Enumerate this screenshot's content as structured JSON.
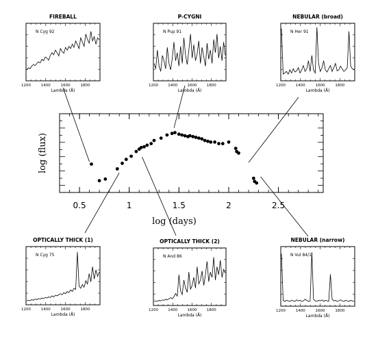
{
  "chart_data": [
    {
      "type": "scatter",
      "title": "",
      "xlabel": "log (days)",
      "ylabel": "log (flux)",
      "xlim": [
        0.3,
        2.95
      ],
      "ylim": [
        0,
        1
      ],
      "xticks": [
        "0.5",
        "1",
        "1.5",
        "2",
        "2.5"
      ],
      "xtick_values": [
        0.5,
        1,
        1.5,
        2,
        2.5
      ],
      "y_tick_labels_shown": false,
      "grid": false,
      "series": [
        {
          "name": "",
          "x": [
            0.62,
            0.7,
            0.76,
            0.88,
            0.93,
            0.97,
            1.02,
            1.07,
            1.1,
            1.12,
            1.15,
            1.18,
            1.22,
            1.25,
            1.32,
            1.38,
            1.43,
            1.46,
            1.5,
            1.53,
            1.56,
            1.59,
            1.61,
            1.64,
            1.67,
            1.7,
            1.73,
            1.76,
            1.79,
            1.82,
            1.86,
            1.9,
            1.94,
            2.0,
            2.07,
            2.08,
            2.1,
            2.25,
            2.26,
            2.28
          ],
          "y": [
            0.36,
            0.15,
            0.17,
            0.3,
            0.37,
            0.42,
            0.46,
            0.52,
            0.55,
            0.57,
            0.58,
            0.6,
            0.62,
            0.66,
            0.69,
            0.73,
            0.75,
            0.76,
            0.74,
            0.73,
            0.72,
            0.71,
            0.72,
            0.71,
            0.7,
            0.69,
            0.68,
            0.66,
            0.65,
            0.64,
            0.64,
            0.62,
            0.62,
            0.64,
            0.56,
            0.52,
            0.5,
            0.18,
            0.14,
            0.12
          ]
        }
      ]
    },
    {
      "type": "line",
      "title": "FIREBALL",
      "series": [
        {
          "name": "N Cyg 92"
        }
      ],
      "xlabel": "Lambda (Å)",
      "xticks": [
        "1200",
        "1400",
        "1600",
        "1800"
      ],
      "xtick_values": [
        1200,
        1400,
        1600,
        1800
      ],
      "xlim": [
        1200,
        1950
      ],
      "ylim": [
        0,
        1
      ],
      "y": [
        0.18,
        0.22,
        0.2,
        0.25,
        0.28,
        0.26,
        0.3,
        0.33,
        0.31,
        0.38,
        0.35,
        0.42,
        0.4,
        0.36,
        0.45,
        0.5,
        0.46,
        0.55,
        0.5,
        0.44,
        0.58,
        0.52,
        0.49,
        0.6,
        0.55,
        0.62,
        0.58,
        0.66,
        0.6,
        0.72,
        0.65,
        0.58,
        0.78,
        0.7,
        0.62,
        0.85,
        0.75,
        0.68,
        0.9,
        0.72,
        0.8,
        0.66,
        0.78,
        0.74
      ]
    },
    {
      "type": "line",
      "title": "P-CYGNI",
      "series": [
        {
          "name": "N Pup 91"
        }
      ],
      "xlabel": "Lambda (Å)",
      "xticks": [
        "1200",
        "1400",
        "1600",
        "1800"
      ],
      "xtick_values": [
        1200,
        1400,
        1600,
        1800
      ],
      "xlim": [
        1200,
        1950
      ],
      "ylim": [
        0,
        1
      ],
      "y": [
        0.3,
        0.2,
        0.55,
        0.25,
        0.15,
        0.45,
        0.35,
        0.2,
        0.6,
        0.3,
        0.18,
        0.4,
        0.7,
        0.35,
        0.5,
        0.25,
        0.62,
        0.3,
        0.78,
        0.45,
        0.28,
        0.55,
        0.85,
        0.4,
        0.65,
        0.35,
        0.48,
        0.72,
        0.3,
        0.6,
        0.42,
        0.25,
        0.68,
        0.38,
        0.55,
        0.3,
        0.75,
        0.5,
        0.85,
        0.4,
        0.62,
        0.35,
        0.7,
        0.45
      ]
    },
    {
      "type": "line",
      "title": "NEBULAR (broad)",
      "series": [
        {
          "name": "N Her 91"
        }
      ],
      "xlabel": "Lambda (Å)",
      "xticks": [
        "1200",
        "1400",
        "1600",
        "1800"
      ],
      "xtick_values": [
        1200,
        1400,
        1600,
        1800
      ],
      "xlim": [
        1200,
        1950
      ],
      "ylim": [
        0,
        1
      ],
      "y": [
        0.95,
        0.1,
        0.12,
        0.15,
        0.1,
        0.18,
        0.12,
        0.2,
        0.14,
        0.16,
        0.22,
        0.12,
        0.18,
        0.26,
        0.15,
        0.2,
        0.35,
        0.15,
        0.45,
        0.18,
        0.12,
        0.98,
        0.3,
        0.15,
        0.22,
        0.35,
        0.18,
        0.14,
        0.2,
        0.26,
        0.15,
        0.22,
        0.3,
        0.16,
        0.18,
        0.25,
        0.2,
        0.15,
        0.18,
        0.22,
        0.9,
        0.25,
        0.2,
        0.18
      ]
    },
    {
      "type": "line",
      "title": "OPTICALLY THICK (1)",
      "series": [
        {
          "name": "N Cyg 75"
        }
      ],
      "xlabel": "Lambda (Å)",
      "xticks": [
        "1200",
        "1400",
        "1600",
        "1800"
      ],
      "xtick_values": [
        1200,
        1400,
        1600,
        1800
      ],
      "xlim": [
        1200,
        1950
      ],
      "ylim": [
        0,
        1
      ],
      "y": [
        0.05,
        0.06,
        0.05,
        0.07,
        0.06,
        0.08,
        0.07,
        0.09,
        0.08,
        0.1,
        0.09,
        0.11,
        0.1,
        0.12,
        0.11,
        0.14,
        0.12,
        0.15,
        0.14,
        0.16,
        0.18,
        0.16,
        0.2,
        0.18,
        0.22,
        0.2,
        0.25,
        0.22,
        0.28,
        0.26,
        0.95,
        0.32,
        0.28,
        0.35,
        0.3,
        0.42,
        0.36,
        0.55,
        0.4,
        0.68,
        0.45,
        0.62,
        0.5,
        0.58
      ]
    },
    {
      "type": "line",
      "title": "OPTICALLY THICK (2)",
      "series": [
        {
          "name": "N And 86"
        }
      ],
      "xlabel": "Lambda (Å)",
      "xticks": [
        "1200",
        "1400",
        "1600",
        "1800"
      ],
      "xtick_values": [
        1200,
        1400,
        1600,
        1800
      ],
      "xlim": [
        1200,
        1950
      ],
      "ylim": [
        0,
        1
      ],
      "y": [
        0.05,
        0.06,
        0.05,
        0.07,
        0.06,
        0.08,
        0.07,
        0.09,
        0.08,
        0.1,
        0.12,
        0.1,
        0.14,
        0.2,
        0.15,
        0.55,
        0.25,
        0.18,
        0.45,
        0.3,
        0.22,
        0.6,
        0.28,
        0.35,
        0.5,
        0.3,
        0.7,
        0.38,
        0.45,
        0.62,
        0.35,
        0.55,
        0.8,
        0.42,
        0.6,
        0.5,
        0.88,
        0.45,
        0.7,
        0.55,
        0.82,
        0.5,
        0.65,
        0.58
      ]
    },
    {
      "type": "line",
      "title": "NEBULAR (narrow)",
      "series": [
        {
          "name": "N Vul 84/1"
        }
      ],
      "xlabel": "Lambda (Å)",
      "xticks": [
        "1200",
        "1400",
        "1600",
        "1800"
      ],
      "xtick_values": [
        1200,
        1400,
        1600,
        1800
      ],
      "xlim": [
        1200,
        1950
      ],
      "ylim": [
        0,
        1
      ],
      "y": [
        0.92,
        0.08,
        0.06,
        0.08,
        0.07,
        0.06,
        0.08,
        0.07,
        0.06,
        0.09,
        0.07,
        0.08,
        0.06,
        0.07,
        0.1,
        0.08,
        0.06,
        0.07,
        0.95,
        0.1,
        0.07,
        0.06,
        0.08,
        0.07,
        0.09,
        0.06,
        0.08,
        0.07,
        0.06,
        0.55,
        0.1,
        0.07,
        0.08,
        0.06,
        0.07,
        0.09,
        0.07,
        0.06,
        0.08,
        0.07,
        0.06,
        0.08,
        0.07,
        0.06
      ]
    }
  ]
}
